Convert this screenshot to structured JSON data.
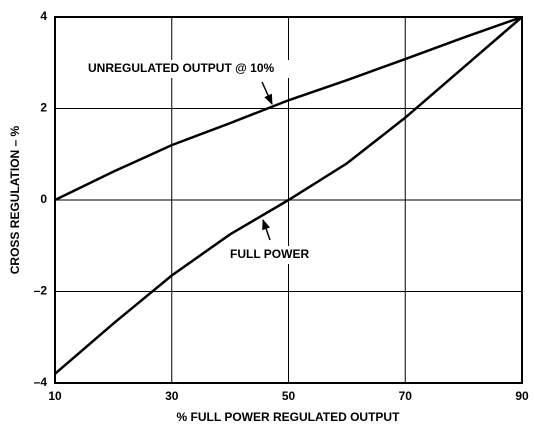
{
  "chart_data": {
    "type": "line",
    "x_label": "% FULL POWER REGULATED OUTPUT",
    "y_label": "CROSS REGULATION – %",
    "x": [
      10,
      20,
      30,
      40,
      50,
      60,
      70,
      80,
      90
    ],
    "series": [
      {
        "name": "UNREGULATED OUTPUT @ 10%",
        "color": "#000000",
        "values": [
          0,
          0.62,
          1.2,
          1.68,
          2.18,
          2.62,
          3.08,
          3.55,
          4
        ]
      },
      {
        "name": "FULL POWER",
        "color": "#000000",
        "values": [
          -3.8,
          -2.7,
          -1.65,
          -0.75,
          0,
          0.8,
          1.8,
          2.9,
          4
        ]
      }
    ],
    "xlim": [
      10,
      90
    ],
    "xticks": [
      10,
      30,
      50,
      70,
      90
    ],
    "ylim": [
      -4,
      4
    ],
    "yticks": [
      {
        "value": -4,
        "label": "–4"
      },
      {
        "value": -2,
        "label": "–2"
      },
      0,
      2,
      4
    ],
    "grid": true
  }
}
